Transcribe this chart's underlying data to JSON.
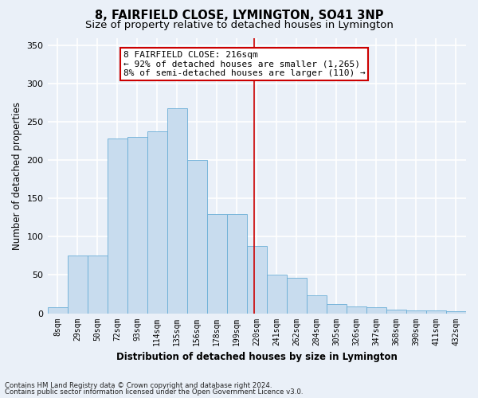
{
  "title": "8, FAIRFIELD CLOSE, LYMINGTON, SO41 3NP",
  "subtitle": "Size of property relative to detached houses in Lymington",
  "xlabel": "Distribution of detached houses by size in Lymington",
  "ylabel": "Number of detached properties",
  "footer_line1": "Contains HM Land Registry data © Crown copyright and database right 2024.",
  "footer_line2": "Contains public sector information licensed under the Open Government Licence v3.0.",
  "categories": [
    "8sqm",
    "29sqm",
    "50sqm",
    "72sqm",
    "93sqm",
    "114sqm",
    "135sqm",
    "156sqm",
    "178sqm",
    "199sqm",
    "220sqm",
    "241sqm",
    "262sqm",
    "284sqm",
    "305sqm",
    "326sqm",
    "347sqm",
    "368sqm",
    "390sqm",
    "411sqm",
    "432sqm"
  ],
  "values": [
    8,
    75,
    75,
    228,
    230,
    238,
    268,
    200,
    130,
    130,
    88,
    50,
    46,
    23,
    12,
    9,
    8,
    5,
    4,
    4,
    3
  ],
  "bar_color": "#c8dcee",
  "bar_edge_color": "#6aaed6",
  "background_color": "#eaf0f8",
  "grid_color": "#ffffff",
  "annotation_line1": "8 FAIRFIELD CLOSE: 216sqm",
  "annotation_line2": "← 92% of detached houses are smaller (1,265)",
  "annotation_line3": "8% of semi-detached houses are larger (110) →",
  "annotation_box_color": "#cc0000",
  "vline_color": "#cc0000",
  "vline_pos": 9.85,
  "ylim": [
    0,
    360
  ],
  "yticks": [
    0,
    50,
    100,
    150,
    200,
    250,
    300,
    350
  ],
  "title_fontsize": 10.5,
  "subtitle_fontsize": 9.5,
  "label_fontsize": 8.5,
  "tick_fontsize": 7,
  "annot_fontsize": 8.0
}
